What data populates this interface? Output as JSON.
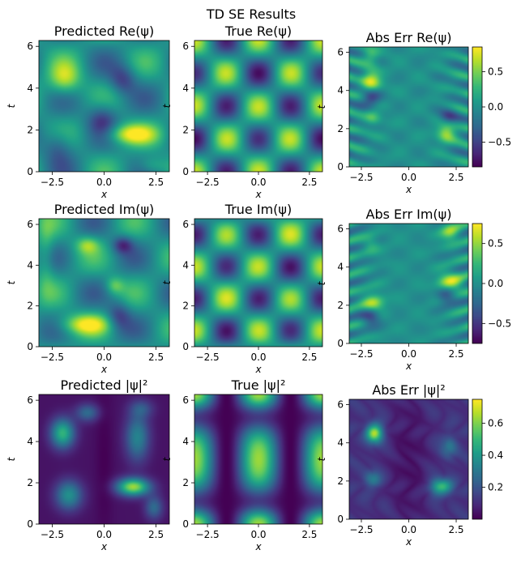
{
  "figure": {
    "suptitle": "TD SE Results"
  },
  "colors": {
    "viridis": [
      "#440154",
      "#482878",
      "#3e4989",
      "#31688e",
      "#26828e",
      "#1f9e89",
      "#35b779",
      "#6ece58",
      "#b5de2b",
      "#fde725"
    ]
  },
  "chart_data": [
    {
      "id": "pred_re",
      "type": "heatmap",
      "title": "Predicted Re(ψ)",
      "xlabel": "x",
      "ylabel": "t",
      "xlim": [
        -3.14,
        3.14
      ],
      "ylim": [
        0,
        6.28
      ],
      "xticks": [
        -2.5,
        0.0,
        2.5
      ],
      "xtick_labels": [
        "−2.5",
        "0.0",
        "2.5"
      ],
      "yticks": [
        0,
        2,
        4,
        6
      ],
      "ytick_labels": [
        "0",
        "2",
        "4",
        "6"
      ],
      "colorbar": null,
      "field": "pred_re"
    },
    {
      "id": "true_re",
      "type": "heatmap",
      "title": "True Re(ψ)",
      "xlabel": "x",
      "ylabel": "t",
      "xlim": [
        -3.14,
        3.14
      ],
      "ylim": [
        0,
        6.28
      ],
      "xticks": [
        -2.5,
        0.0,
        2.5
      ],
      "xtick_labels": [
        "−2.5",
        "0.0",
        "2.5"
      ],
      "yticks": [
        0,
        2,
        4,
        6
      ],
      "ytick_labels": [
        "0",
        "2",
        "4",
        "6"
      ],
      "colorbar": null,
      "field": "true_re"
    },
    {
      "id": "err_re",
      "type": "heatmap",
      "title": "Abs Err Re(ψ)",
      "xlabel": "x",
      "ylabel": "t",
      "xlim": [
        -3.14,
        3.14
      ],
      "ylim": [
        0,
        6.28
      ],
      "xticks": [
        -2.5,
        0.0,
        2.5
      ],
      "xtick_labels": [
        "−2.5",
        "0.0",
        "2.5"
      ],
      "yticks": [
        0,
        2,
        4,
        6
      ],
      "ytick_labels": [
        "0",
        "2",
        "4",
        "6"
      ],
      "colorbar": {
        "range": [
          -0.85,
          0.85
        ],
        "ticks": [
          0.5,
          0.0,
          -0.5
        ],
        "tick_labels": [
          "0.5",
          "0.0",
          "−0.5"
        ]
      },
      "field": "err_re"
    },
    {
      "id": "pred_im",
      "type": "heatmap",
      "title": "Predicted Im(ψ)",
      "xlabel": "x",
      "ylabel": "t",
      "xlim": [
        -3.14,
        3.14
      ],
      "ylim": [
        0,
        6.28
      ],
      "xticks": [
        -2.5,
        0.0,
        2.5
      ],
      "xtick_labels": [
        "−2.5",
        "0.0",
        "2.5"
      ],
      "yticks": [
        0,
        2,
        4,
        6
      ],
      "ytick_labels": [
        "0",
        "2",
        "4",
        "6"
      ],
      "colorbar": null,
      "field": "pred_im"
    },
    {
      "id": "true_im",
      "type": "heatmap",
      "title": "True Im(ψ)",
      "xlabel": "x",
      "ylabel": "t",
      "xlim": [
        -3.14,
        3.14
      ],
      "ylim": [
        0,
        6.28
      ],
      "xticks": [
        -2.5,
        0.0,
        2.5
      ],
      "xtick_labels": [
        "−2.5",
        "0.0",
        "2.5"
      ],
      "yticks": [
        0,
        2,
        4,
        6
      ],
      "ytick_labels": [
        "0",
        "2",
        "4",
        "6"
      ],
      "colorbar": null,
      "field": "true_im"
    },
    {
      "id": "err_im",
      "type": "heatmap",
      "title": "Abs Err Im(ψ)",
      "xlabel": "x",
      "ylabel": "t",
      "xlim": [
        -3.14,
        3.14
      ],
      "ylim": [
        0,
        6.28
      ],
      "xticks": [
        -2.5,
        0.0,
        2.5
      ],
      "xtick_labels": [
        "−2.5",
        "0.0",
        "2.5"
      ],
      "yticks": [
        0,
        2,
        4,
        6
      ],
      "ytick_labels": [
        "0",
        "2",
        "4",
        "6"
      ],
      "colorbar": {
        "range": [
          -0.75,
          0.75
        ],
        "ticks": [
          0.5,
          0.0,
          -0.5
        ],
        "tick_labels": [
          "0.5",
          "0.0",
          "−0.5"
        ]
      },
      "field": "err_im"
    },
    {
      "id": "pred_abs",
      "type": "heatmap",
      "title": "Predicted |ψ|²",
      "xlabel": "x",
      "ylabel": "t",
      "xlim": [
        -3.14,
        3.14
      ],
      "ylim": [
        0,
        6.28
      ],
      "xticks": [
        -2.5,
        0.0,
        2.5
      ],
      "xtick_labels": [
        "−2.5",
        "0.0",
        "2.5"
      ],
      "yticks": [
        0,
        2,
        4,
        6
      ],
      "ytick_labels": [
        "0",
        "2",
        "4",
        "6"
      ],
      "colorbar": null,
      "field": "pred_abs"
    },
    {
      "id": "true_abs",
      "type": "heatmap",
      "title": "True |ψ|²",
      "xlabel": "x",
      "ylabel": "t",
      "xlim": [
        -3.14,
        3.14
      ],
      "ylim": [
        0,
        6.28
      ],
      "xticks": [
        -2.5,
        0.0,
        2.5
      ],
      "xtick_labels": [
        "−2.5",
        "0.0",
        "2.5"
      ],
      "yticks": [
        0,
        2,
        4,
        6
      ],
      "ytick_labels": [
        "0",
        "2",
        "4",
        "6"
      ],
      "colorbar": null,
      "field": "true_abs"
    },
    {
      "id": "err_abs",
      "type": "heatmap",
      "title": "Abs Err |ψ|²",
      "xlabel": "x",
      "ylabel": "t",
      "xlim": [
        -3.14,
        3.14
      ],
      "ylim": [
        0,
        6.28
      ],
      "xticks": [
        -2.5,
        0.0,
        2.5
      ],
      "xtick_labels": [
        "−2.5",
        "0.0",
        "2.5"
      ],
      "yticks": [
        0,
        2,
        4,
        6
      ],
      "ytick_labels": [
        "0",
        "2",
        "4",
        "6"
      ],
      "colorbar": {
        "range": [
          0.0,
          0.75
        ],
        "ticks": [
          0.6,
          0.4,
          0.2
        ],
        "tick_labels": [
          "0.6",
          "0.4",
          "0.2"
        ]
      },
      "field": "err_abs"
    }
  ]
}
